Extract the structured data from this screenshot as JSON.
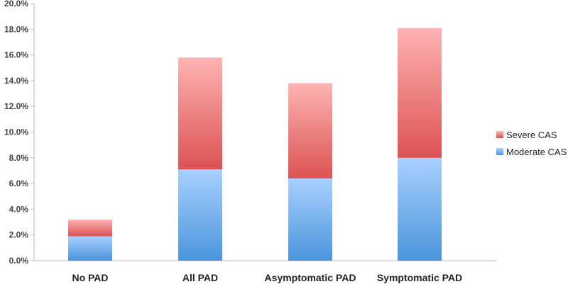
{
  "chart_data": {
    "type": "bar",
    "stacked": true,
    "categories": [
      "No PAD",
      "All PAD",
      "Asymptomatic PAD",
      "Symptomatic PAD"
    ],
    "series": [
      {
        "name": "Moderate CAS",
        "values": [
          1.9,
          7.1,
          6.4,
          8.0
        ]
      },
      {
        "name": "Severe CAS",
        "values": [
          1.3,
          8.7,
          7.4,
          10.1
        ]
      }
    ],
    "title": "",
    "xlabel": "",
    "ylabel": "",
    "ylim": [
      0,
      20
    ],
    "yticks": [
      0,
      2,
      4,
      6,
      8,
      10,
      12,
      14,
      16,
      18,
      20
    ],
    "ytick_format": "percent_1dp",
    "grid": false,
    "legend": {
      "position": "right",
      "order": [
        "Severe CAS",
        "Moderate CAS"
      ]
    },
    "colors": {
      "Moderate CAS": {
        "top": "#a9d0ff",
        "bottom": "#4a95dc"
      },
      "Severe CAS": {
        "top": "#ffb3b3",
        "bottom": "#dc5252"
      }
    },
    "axis_color": "#bdbdbd"
  }
}
